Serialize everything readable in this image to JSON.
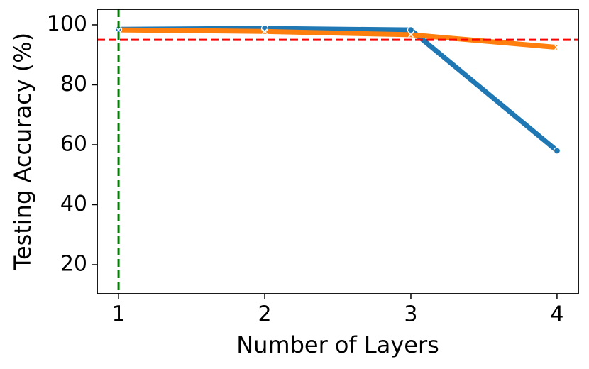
{
  "chart_data": {
    "type": "line",
    "xlabel": "Number of Layers",
    "ylabel": "Testing Accuracy (%)",
    "x": [
      1,
      2,
      3,
      4
    ],
    "series": [
      {
        "color": "#1f77b4",
        "marker": "circle",
        "values": [
          98.5,
          98.8,
          98.3,
          58
        ]
      },
      {
        "color": "#ff7f0e",
        "marker": "x",
        "values": [
          98.3,
          97.8,
          96.7,
          92.5
        ]
      }
    ],
    "xlim": [
      0.854,
      4.146
    ],
    "xticks": [
      1,
      2,
      3,
      4
    ],
    "ylim": [
      10.3,
      105.2
    ],
    "yticks": [
      20,
      40,
      60,
      80,
      100
    ],
    "hlines": [
      {
        "value": 95,
        "color": "#ff0000"
      }
    ],
    "vlines": [
      {
        "value": 1,
        "color": "#008000"
      }
    ]
  }
}
